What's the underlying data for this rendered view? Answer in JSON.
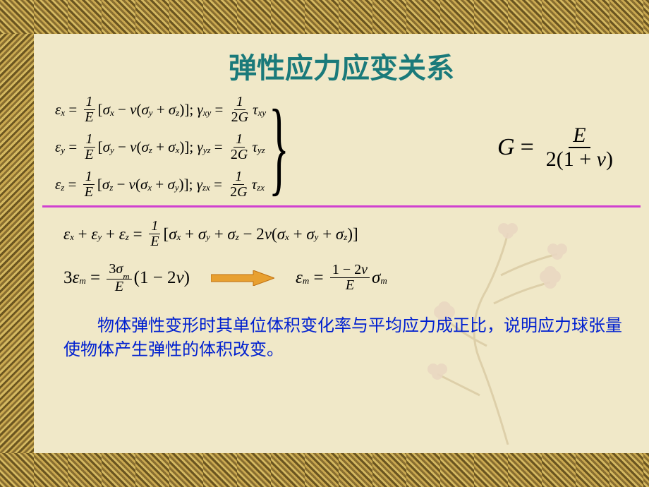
{
  "title": "弹性应力应变关系",
  "colors": {
    "background": "#f0e8c8",
    "title": "#1a7a7a",
    "divider": "#d040d0",
    "body_text": "#0020d0",
    "equation": "#000000",
    "arrow_fill": "#e8a030",
    "arrow_stroke": "#c07010",
    "border_dark": "#6b5520",
    "border_light": "#d4b860"
  },
  "fonts": {
    "title_size_pt": 30,
    "equation_size_pt": 16,
    "g_equation_size_pt": 26,
    "body_size_pt": 18
  },
  "equations": {
    "hooke_lines": [
      {
        "strain": "ε",
        "strain_sub": "x",
        "sigma_main": "σ",
        "sigma_main_sub": "x",
        "sigma_a": "σ",
        "sigma_a_sub": "y",
        "sigma_b": "σ",
        "sigma_b_sub": "z",
        "shear": "γ",
        "shear_sub": "xy",
        "tau": "τ",
        "tau_sub": "xy"
      },
      {
        "strain": "ε",
        "strain_sub": "y",
        "sigma_main": "σ",
        "sigma_main_sub": "y",
        "sigma_a": "σ",
        "sigma_a_sub": "z",
        "sigma_b": "σ",
        "sigma_b_sub": "x",
        "shear": "γ",
        "shear_sub": "yz",
        "tau": "τ",
        "tau_sub": "yz"
      },
      {
        "strain": "ε",
        "strain_sub": "z",
        "sigma_main": "σ",
        "sigma_main_sub": "z",
        "sigma_a": "σ",
        "sigma_a_sub": "x",
        "sigma_b": "σ",
        "sigma_b_sub": "y",
        "shear": "γ",
        "shear_sub": "zx",
        "tau": "τ",
        "tau_sub": "zx"
      }
    ],
    "frac_1_E": {
      "num": "1",
      "den": "E"
    },
    "frac_1_2G": {
      "num": "1",
      "den": "2G"
    },
    "nu": "ν",
    "G_eq": {
      "lhs": "G",
      "num": "E",
      "den_pre": "2(1 + ",
      "den_nu": "ν",
      "den_post": ")"
    },
    "sum_eq": {
      "lhs_terms": [
        "ε",
        "x",
        "ε",
        "y",
        "ε",
        "z"
      ],
      "rhs_bracket": [
        "σ",
        "x",
        "σ",
        "y",
        "σ",
        "z",
        "2ν",
        "σ",
        "x",
        "σ",
        "y",
        "σ",
        "z"
      ]
    },
    "mean_eq1": {
      "lhs_coef": "3",
      "lhs_sym": "ε",
      "lhs_sub": "m",
      "frac_num": "3σ",
      "frac_num_sub": "m",
      "frac_den": "E",
      "tail_pre": "(1 − 2",
      "tail_nu": "ν",
      "tail_post": ")"
    },
    "mean_eq2": {
      "lhs": "ε",
      "lhs_sub": "m",
      "frac_num_pre": "1 − 2",
      "frac_num_nu": "ν",
      "frac_den": "E",
      "rhs": "σ",
      "rhs_sub": "m"
    }
  },
  "body_text": "物体弹性变形时其单位体积变化率与平均应力成正比，说明应力球张量使物体产生弹性的体积改变。"
}
